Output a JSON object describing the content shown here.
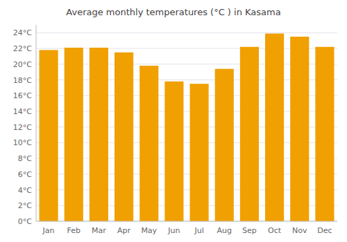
{
  "chart_data": {
    "type": "bar",
    "title": "Average monthly temperatures (°C ) in Kasama",
    "categories": [
      "Jan",
      "Feb",
      "Mar",
      "Apr",
      "May",
      "Jun",
      "Jul",
      "Aug",
      "Sep",
      "Oct",
      "Nov",
      "Dec"
    ],
    "values": [
      21.8,
      22.1,
      22.1,
      21.5,
      19.8,
      17.8,
      17.5,
      19.4,
      22.2,
      23.9,
      23.5,
      22.2
    ],
    "color": "#F0A000",
    "ylim": [
      0,
      25
    ],
    "yticks": [
      {
        "value": 0,
        "label": "0°C"
      },
      {
        "value": 2,
        "label": "2°C"
      },
      {
        "value": 4,
        "label": "4°C"
      },
      {
        "value": 6,
        "label": "6°C"
      },
      {
        "value": 8,
        "label": "8°C"
      },
      {
        "value": 10,
        "label": "10°C"
      },
      {
        "value": 12,
        "label": "12°C"
      },
      {
        "value": 14,
        "label": "14°C"
      },
      {
        "value": 16,
        "label": "16°C"
      },
      {
        "value": 18,
        "label": "18°C"
      },
      {
        "value": 20,
        "label": "20°C"
      },
      {
        "value": 22,
        "label": "22°C"
      },
      {
        "value": 24,
        "label": "24°C"
      }
    ],
    "grid": true
  }
}
